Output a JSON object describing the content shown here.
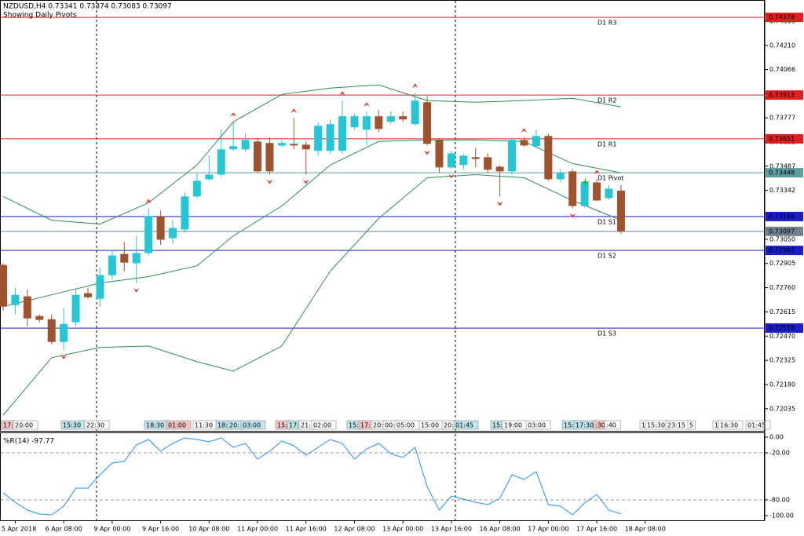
{
  "header": {
    "symbol_line": "NZDUSD,H4  0.73341 0.73374 0.73083 0.73097",
    "subtitle": "Showing Daily Pivots"
  },
  "chart_data": [
    {
      "type": "candlestick",
      "up_color": "#26c6d6",
      "down_color": "#a0522d",
      "open": [
        0.72896,
        0.72656,
        0.72708,
        0.7259,
        0.72571,
        0.72435,
        0.72553,
        0.72727,
        0.72694,
        0.72835,
        0.72962,
        0.72906,
        0.72967,
        0.73188,
        0.73056,
        0.73108,
        0.73306,
        0.73409,
        0.73437,
        0.73588,
        0.73588,
        0.73635,
        0.73626,
        0.73611,
        0.73621,
        0.73616,
        0.73579,
        0.73579,
        0.73579,
        0.7372,
        0.73706,
        0.73786,
        0.73753,
        0.73786,
        0.73739,
        0.7387,
        0.73644,
        0.7348,
        0.73494,
        0.73541,
        0.73541,
        0.73484,
        0.73456,
        0.73644,
        0.73607,
        0.73668,
        0.73409,
        0.73456,
        0.73249,
        0.7339,
        0.73296,
        0.73341
      ],
      "high": [
        0.72906,
        0.7276,
        0.7275,
        0.726,
        0.726,
        0.72637,
        0.7275,
        0.7276,
        0.72882,
        0.72986,
        0.73033,
        0.7307,
        0.73235,
        0.73221,
        0.73164,
        0.73329,
        0.73447,
        0.7355,
        0.73706,
        0.73753,
        0.73682,
        0.73659,
        0.73659,
        0.73644,
        0.73776,
        0.73635,
        0.73748,
        0.73767,
        0.7388,
        0.738,
        0.73814,
        0.73823,
        0.73814,
        0.73814,
        0.73926,
        0.73908,
        0.73654,
        0.73579,
        0.7356,
        0.73597,
        0.73564,
        0.73494,
        0.73659,
        0.73659,
        0.73706,
        0.73682,
        0.7347,
        0.7347,
        0.734,
        0.73409,
        0.73376,
        0.73374
      ],
      "low": [
        0.72623,
        0.726,
        0.72529,
        0.72553,
        0.72421,
        0.72388,
        0.72529,
        0.72694,
        0.72647,
        0.72811,
        0.72859,
        0.72788,
        0.72953,
        0.73014,
        0.73023,
        0.73089,
        0.73296,
        0.734,
        0.73423,
        0.73579,
        0.73574,
        0.73447,
        0.73437,
        0.73602,
        0.73588,
        0.73437,
        0.7355,
        0.7356,
        0.7356,
        0.73706,
        0.73611,
        0.73691,
        0.73739,
        0.73753,
        0.73729,
        0.73611,
        0.73447,
        0.7347,
        0.7347,
        0.7348,
        0.73447,
        0.73306,
        0.73437,
        0.73602,
        0.73597,
        0.734,
        0.7339,
        0.73235,
        0.7324,
        0.73277,
        0.73287,
        0.73083
      ],
      "close": [
        0.72647,
        0.72717,
        0.72576,
        0.72567,
        0.72435,
        0.72543,
        0.72717,
        0.72703,
        0.72835,
        0.72953,
        0.7291,
        0.72967,
        0.73188,
        0.73047,
        0.73117,
        0.73306,
        0.734,
        0.73437,
        0.73588,
        0.73607,
        0.73644,
        0.73456,
        0.73456,
        0.73626,
        0.73611,
        0.73588,
        0.73729,
        0.73739,
        0.73786,
        0.73786,
        0.73786,
        0.7371,
        0.73786,
        0.73767,
        0.7388,
        0.73621,
        0.7348,
        0.73564,
        0.7355,
        0.73531,
        0.73466,
        0.73456,
        0.73644,
        0.73611,
        0.73668,
        0.73409,
        0.73447,
        0.73249,
        0.7339,
        0.73282,
        0.73353,
        0.73097
      ],
      "ylim": [
        0.71903,
        0.74482
      ],
      "yticks": [
        0.74355,
        {
          "value": 0.7421,
          "label": "0.74210"
        },
        0.74066,
        0.73921,
        0.73777,
        0.73632,
        0.73487,
        0.73342,
        0.73197,
        {
          "value": 0.7305,
          "label": "0.73050"
        },
        0.72905,
        {
          "value": 0.7276,
          "label": "0.72760"
        },
        0.72615,
        {
          "value": 0.7247,
          "label": "0.72470"
        },
        0.72325,
        {
          "value": 0.7218,
          "label": "0.72180"
        },
        0.72035
      ],
      "bands": {
        "color": "#2e8b57",
        "x": [
          0,
          4,
          8,
          12,
          16,
          19,
          23,
          27,
          31,
          35,
          39,
          43,
          47,
          51
        ],
        "upper": [
          0.73306,
          0.73164,
          0.73141,
          0.73268,
          0.73494,
          0.73753,
          0.73917,
          0.73955,
          0.73974,
          0.7388,
          0.7387,
          0.7388,
          0.73894,
          0.73842
        ],
        "middle": [
          0.72647,
          0.72717,
          0.72788,
          0.72826,
          0.72891,
          0.7307,
          0.73249,
          0.73494,
          0.73635,
          0.73644,
          0.73644,
          0.73635,
          0.73503,
          0.73447
        ],
        "lower": [
          0.71997,
          0.72341,
          0.72402,
          0.72411,
          0.72317,
          0.72261,
          0.72411,
          0.72859,
          0.73174,
          0.73418,
          0.73437,
          0.73418,
          0.73282,
          0.73164
        ]
      },
      "fractal_color": "#e8281e",
      "fractals_up": [
        12,
        19,
        24,
        28,
        30,
        34,
        43,
        49
      ],
      "fractals_down": [
        5,
        11,
        22,
        25,
        35,
        37,
        41,
        47
      ],
      "pivots": [
        {
          "name": "D1 R3",
          "value": 0.74378,
          "color": "#e02020"
        },
        {
          "name": "D1 R2",
          "value": 0.73913,
          "color": "#e02020"
        },
        {
          "name": "D1 R1",
          "value": 0.73651,
          "color": "#e02020"
        },
        {
          "name": "D1 Pivot",
          "value": 0.73448,
          "color": "#5f9ea0"
        },
        {
          "name": "D1 S1",
          "value": 0.73186,
          "color": "#1c1cc8"
        },
        {
          "name": "D1 S2",
          "value": 0.72983,
          "color": "#1c1cc8"
        },
        {
          "name": "D1 S3",
          "value": 0.72518,
          "color": "#1c1cc8"
        }
      ],
      "current_price": {
        "value": 0.73097,
        "color": "#708090"
      },
      "session_labels": [
        {
          "text": "17:",
          "color": "#f6c4c4"
        },
        {
          "text": "20:00",
          "color": "#ffffff"
        },
        {
          "text": "15:30",
          "color": "#bfe6ec"
        },
        {
          "text": "22:30",
          "color": "#ffffff"
        },
        {
          "text": "18:30",
          "color": "#bfe6ec"
        },
        {
          "text": "01:00",
          "color": "#f6c4c4"
        },
        {
          "text": "11:30",
          "color": "#ffffff"
        },
        {
          "text": "18:",
          "color": "#bfe6ec"
        },
        {
          "text": "20:",
          "color": "#bfe6ec"
        },
        {
          "text": "03:00",
          "color": "#bfe6ec"
        },
        {
          "text": "15:",
          "color": "#f6c4c4"
        },
        {
          "text": "17:",
          "color": "#bfe6ec"
        },
        {
          "text": "21:",
          "color": "#ffffff"
        },
        {
          "text": "02:00",
          "color": "#ffffff"
        },
        {
          "text": "15:",
          "color": "#bfe6ec"
        },
        {
          "text": "17:",
          "color": "#f6c4c4"
        },
        {
          "text": "20:",
          "color": "#ffffff"
        },
        {
          "text": "00:",
          "color": "#ffffff"
        },
        {
          "text": "05:00",
          "color": "#ffffff"
        },
        {
          "text": "15:00",
          "color": "#ffffff"
        },
        {
          "text": "20:",
          "color": "#ffffff"
        },
        {
          "text": "01:45",
          "color": "#bfe6ec"
        },
        {
          "text": "15:",
          "color": "#bfe6ec"
        },
        {
          "text": "19:00",
          "color": "#ffffff"
        },
        {
          "text": "03:00",
          "color": "#ffffff"
        },
        {
          "text": "15:",
          "color": "#bfe6ec"
        },
        {
          "text": "17:30",
          "color": "#bfe6ec"
        },
        {
          "text": ":30",
          "color": "#f6c4c4"
        },
        {
          "text": ":40",
          "color": "#ffffff"
        },
        {
          "text": "1",
          "color": "#ffffff"
        },
        {
          "text": "15:30",
          "color": "#ffffff"
        },
        {
          "text": "23:15",
          "color": "#ffffff"
        },
        {
          "text": "5",
          "color": "#ffffff"
        },
        {
          "text": "1",
          "color": "#ffffff"
        },
        {
          "text": "16:30",
          "color": "#ffffff"
        },
        {
          "text": "01:45",
          "color": "#ffffff"
        }
      ],
      "x_labels": [
        "5 Apr 2018",
        "6 Apr 08:00",
        "9 Apr 00:00",
        "9 Apr 16:00",
        "10 Apr 08:00",
        "11 Apr 00:00",
        "11 Apr 16:00",
        "12 Apr 08:00",
        "13 Apr 00:00",
        "13 Apr 16:00",
        "16 Apr 08:00",
        "17 Apr 00:00",
        "17 Apr 16:00",
        "18 Apr 08:00"
      ]
    },
    {
      "type": "line",
      "title": "%R(14) -97.77",
      "color": "#1e90ff",
      "values": [
        -71,
        -83,
        -93,
        -98,
        -99,
        -88,
        -65,
        -65,
        -48,
        -33,
        -31,
        -10,
        -3,
        -18,
        -8,
        -1,
        -3,
        -6,
        -1,
        -13,
        -8,
        -28,
        -18,
        -5,
        -11,
        -23,
        -13,
        -3,
        -8,
        -28,
        -15,
        -8,
        -21,
        -26,
        -13,
        -63,
        -93,
        -75,
        -79,
        -83,
        -86,
        -78,
        -48,
        -54,
        -44,
        -86,
        -88,
        -99,
        -84,
        -73,
        -93,
        -97.77
      ],
      "ylim": [
        -106,
        5
      ],
      "yticks": [
        {
          "value": 0,
          "label": "0.00"
        },
        {
          "value": -20,
          "label": "-20.00"
        },
        {
          "value": -80,
          "label": "-80.00"
        },
        {
          "value": -100,
          "label": "-100.00"
        }
      ],
      "levels": [
        -20,
        -80
      ]
    }
  ]
}
